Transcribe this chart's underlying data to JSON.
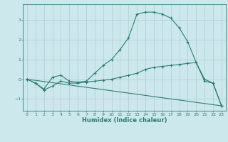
{
  "title": "",
  "xlabel": "Humidex (Indice chaleur)",
  "ylabel": "",
  "bg_color": "#cce8ec",
  "grid_color": "#aacdd4",
  "line_color": "#2d7d6e",
  "xlim": [
    -0.5,
    23.5
  ],
  "ylim": [
    -1.6,
    3.8
  ],
  "yticks": [
    -1,
    0,
    1,
    2,
    3
  ],
  "xticks": [
    0,
    1,
    2,
    3,
    4,
    5,
    6,
    7,
    8,
    9,
    10,
    11,
    12,
    13,
    14,
    15,
    16,
    17,
    18,
    19,
    20,
    21,
    22,
    23
  ],
  "line1_x": [
    0,
    1,
    2,
    3,
    4,
    5,
    6,
    7,
    8,
    9,
    10,
    11,
    12,
    13,
    14,
    15,
    16,
    17,
    18,
    19,
    20,
    21,
    22,
    23
  ],
  "line1_y": [
    0.0,
    -0.2,
    -0.5,
    0.1,
    0.2,
    -0.1,
    -0.15,
    -0.1,
    0.3,
    0.7,
    1.0,
    1.5,
    2.1,
    3.3,
    3.4,
    3.4,
    3.3,
    3.1,
    2.6,
    1.9,
    0.85,
    -0.1,
    -0.2,
    -1.35
  ],
  "line2_x": [
    0,
    1,
    2,
    3,
    4,
    5,
    6,
    7,
    8,
    9,
    10,
    11,
    12,
    13,
    14,
    15,
    16,
    17,
    18,
    19,
    20,
    21,
    22,
    23
  ],
  "line2_y": [
    0.0,
    -0.2,
    -0.55,
    -0.35,
    -0.1,
    -0.2,
    -0.2,
    -0.15,
    -0.1,
    -0.05,
    0.0,
    0.1,
    0.2,
    0.3,
    0.5,
    0.6,
    0.65,
    0.7,
    0.75,
    0.8,
    0.85,
    0.0,
    -0.2,
    -1.35
  ],
  "line3_x": [
    0,
    23
  ],
  "line3_y": [
    0.0,
    -1.35
  ]
}
